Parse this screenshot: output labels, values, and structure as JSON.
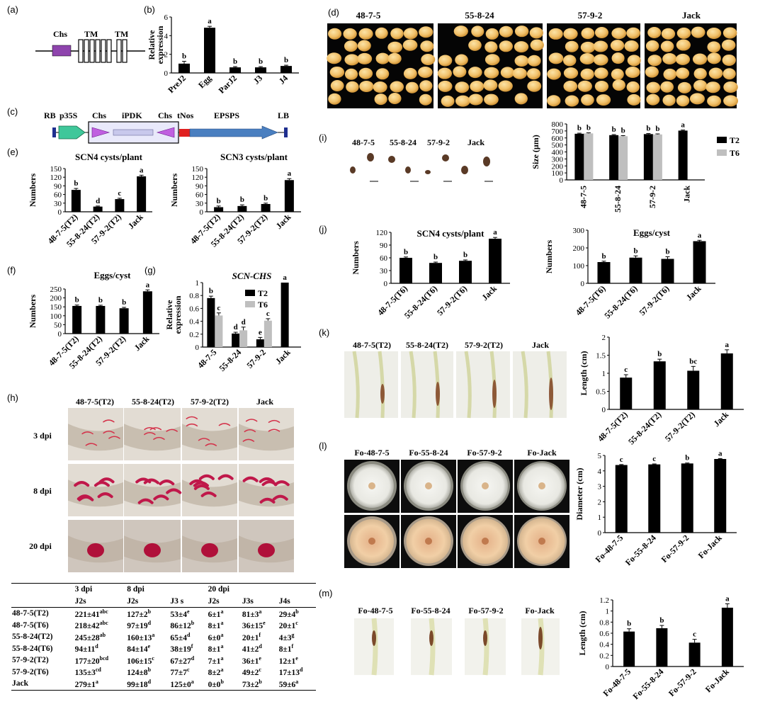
{
  "panels": {
    "a": "(a)",
    "b": "(b)",
    "c": "(c)",
    "d": "(d)",
    "e": "(e)",
    "f": "(f)",
    "g": "(g)",
    "h": "(h)",
    "i": "(i)",
    "j": "(j)",
    "k": "(k)",
    "l": "(l)",
    "m": "(m)"
  },
  "gene_model": {
    "labels": [
      "Chs",
      "TM",
      "TM"
    ],
    "colors": {
      "chs": "#8e44ad"
    }
  },
  "construct": {
    "labels": [
      "RB",
      "p35S",
      "Chs",
      "iPDK",
      "Chs",
      "tNos",
      "EPSPS",
      "LB"
    ],
    "colors": {
      "promoter": "#3fc79a",
      "chs": "#c060e0",
      "intron": "#c8c8ec",
      "tnos": "#e02020",
      "epsps": "#4a7fc0",
      "border": "#1f2f8f"
    }
  },
  "photo_labels": {
    "d": [
      "48-7-5",
      "55-8-24",
      "57-9-2",
      "Jack"
    ],
    "i": [
      "48-7-5",
      "55-8-24",
      "57-9-2",
      "Jack"
    ],
    "h_cols": [
      "48-7-5(T2)",
      "55-8-24(T2)",
      "57-9-2(T2)",
      "Jack"
    ],
    "h_rows": [
      "3 dpi",
      "8 dpi",
      "20 dpi"
    ],
    "k": [
      "48-7-5(T2)",
      "55-8-24(T2)",
      "57-9-2(T2)",
      "Jack"
    ],
    "l": [
      "Fo-48-7-5",
      "Fo-55-8-24",
      "Fo-57-9-2",
      "Fo-Jack"
    ],
    "m": [
      "Fo-48-7-5",
      "Fo-55-8-24",
      "Fo-57-9-2",
      "Fo-Jack"
    ]
  },
  "table_h": {
    "header1": [
      "",
      "3 dpi",
      "8 dpi",
      "",
      "20 dpi",
      "",
      ""
    ],
    "header2": [
      "",
      "J2s",
      "J2s",
      "J3 s",
      "J2s",
      "J3s",
      "J4s"
    ],
    "rows": [
      {
        "line": "48-7-5(T2)",
        "cells": [
          [
            "221±41",
            "abc"
          ],
          [
            "127±2",
            "b"
          ],
          [
            "53±4",
            "e"
          ],
          [
            "6±1",
            "a"
          ],
          [
            "81±3",
            "a"
          ],
          [
            "29±4",
            "b"
          ]
        ]
      },
      {
        "line": "48-7-5(T6)",
        "cells": [
          [
            "218±42",
            "abc"
          ],
          [
            "97±19",
            "d"
          ],
          [
            "86±12",
            "b"
          ],
          [
            "8±1",
            "a"
          ],
          [
            "36±15",
            "e"
          ],
          [
            "20±1",
            "c"
          ]
        ]
      },
      {
        "line": "55-8-24(T2)",
        "cells": [
          [
            "245±28",
            "ab"
          ],
          [
            "160±13",
            "a"
          ],
          [
            "65±4",
            "d"
          ],
          [
            "6±0",
            "a"
          ],
          [
            "20±1",
            "f"
          ],
          [
            "4±3",
            "g"
          ]
        ]
      },
      {
        "line": "55-8-24(T6)",
        "cells": [
          [
            "94±11",
            "d"
          ],
          [
            "84±14",
            "e"
          ],
          [
            "38±19",
            "f"
          ],
          [
            "8±1",
            "a"
          ],
          [
            "41±2",
            "d"
          ],
          [
            "8±1",
            "f"
          ]
        ]
      },
      {
        "line": "57-9-2(T2)",
        "cells": [
          [
            "177±20",
            "bcd"
          ],
          [
            "106±15",
            "c"
          ],
          [
            "67±27",
            "d"
          ],
          [
            "7±1",
            "a"
          ],
          [
            "36±1",
            "e"
          ],
          [
            "12±1",
            "e"
          ]
        ]
      },
      {
        "line": "57-9-2(T6)",
        "cells": [
          [
            "135±3",
            "cd"
          ],
          [
            "124±8",
            "b"
          ],
          [
            "77±7",
            "c"
          ],
          [
            "8±2",
            "a"
          ],
          [
            "49±2",
            "c"
          ],
          [
            "17±13",
            "d"
          ]
        ]
      },
      {
        "line": "Jack",
        "cells": [
          [
            "279±1",
            "a"
          ],
          [
            "99±18",
            "d"
          ],
          [
            "125±0",
            "a"
          ],
          [
            "0±0",
            "b"
          ],
          [
            "73±2",
            "b"
          ],
          [
            "59±6",
            "a"
          ]
        ]
      }
    ]
  },
  "chart_data": [
    {
      "id": "b",
      "type": "bar",
      "categories": [
        "PreJ2",
        "Egg",
        "ParJ2",
        "J3",
        "J4"
      ],
      "values": [
        1.0,
        4.85,
        0.6,
        0.6,
        0.75
      ],
      "errors": [
        0.25,
        0.15,
        0.08,
        0.08,
        0.08
      ],
      "letters": [
        "b",
        "a",
        "b",
        "b",
        "b"
      ],
      "ylim": [
        0,
        6
      ],
      "yticks": [
        0,
        2,
        4,
        6
      ],
      "ylabel": "Relative expression",
      "title": "",
      "series_colors": [
        "#000000"
      ]
    },
    {
      "id": "e1",
      "type": "bar",
      "categories": [
        "48-7-5(T2)",
        "55-8-24(T2)",
        "57-9-2(T2)",
        "Jack"
      ],
      "values": [
        76,
        18,
        44,
        123
      ],
      "errors": [
        5,
        2,
        3,
        4
      ],
      "letters": [
        "b",
        "d",
        "c",
        "a"
      ],
      "ylim": [
        0,
        150
      ],
      "yticks": [
        0,
        30,
        60,
        90,
        120,
        150
      ],
      "ylabel": "Numbers",
      "title": "SCN4 cysts/plant",
      "series_colors": [
        "#000000"
      ]
    },
    {
      "id": "e2",
      "type": "bar",
      "categories": [
        "48-7-5(T2)",
        "55-8-24(T2)",
        "57-9-2(T2)",
        "Jack"
      ],
      "values": [
        16,
        20,
        27,
        110
      ],
      "errors": [
        4,
        4,
        3,
        5
      ],
      "letters": [
        "b",
        "b",
        "b",
        "a"
      ],
      "ylim": [
        0,
        150
      ],
      "yticks": [
        0,
        30,
        60,
        90,
        120,
        150
      ],
      "ylabel": "Numbers",
      "title": "SCN3 cysts/plant",
      "series_colors": [
        "#000000"
      ]
    },
    {
      "id": "f",
      "type": "bar",
      "categories": [
        "48-7-5(T2)",
        "55-8-24(T2)",
        "57-9-2(T2)",
        "Jack"
      ],
      "values": [
        155,
        155,
        142,
        237
      ],
      "errors": [
        5,
        4,
        5,
        8
      ],
      "letters": [
        "b",
        "b",
        "b",
        "a"
      ],
      "ylim": [
        0,
        250
      ],
      "yticks": [
        0,
        50,
        100,
        150,
        200,
        250
      ],
      "ylabel": "Numbers",
      "title": "Eggs/cyst",
      "series_colors": [
        "#000000"
      ]
    },
    {
      "id": "g",
      "type": "bar",
      "categories": [
        "48-7-5",
        "55-8-24",
        "57-9-2",
        "Jack"
      ],
      "series": [
        {
          "name": "T2",
          "values": [
            0.76,
            0.21,
            0.12,
            1.0
          ],
          "errors": [
            0.03,
            0.02,
            0.03,
            0
          ],
          "letters": [
            "b",
            "d",
            "e",
            "a"
          ]
        },
        {
          "name": "T6",
          "values": [
            0.49,
            0.26,
            0.41,
            null
          ],
          "errors": [
            0.04,
            0.05,
            0.03,
            0
          ],
          "letters": [
            "c",
            "d",
            "c",
            ""
          ]
        }
      ],
      "ylim": [
        0,
        1
      ],
      "yticks": [
        0,
        0.2,
        0.4,
        0.6,
        0.8,
        1
      ],
      "ylabel": "Relative expression",
      "title": "SCN-CHS",
      "legend": "top-right",
      "series_colors": [
        "#000000",
        "#bfbfbf"
      ]
    },
    {
      "id": "i",
      "type": "bar",
      "categories": [
        "48-7-5",
        "55-8-24",
        "57-9-2",
        "Jack"
      ],
      "series": [
        {
          "name": "T2",
          "values": [
            660,
            640,
            655,
            705
          ],
          "errors": [
            8,
            8,
            8,
            8
          ],
          "letters": [
            "b",
            "b",
            "b",
            "a"
          ]
        },
        {
          "name": "T6",
          "values": [
            665,
            625,
            650,
            null
          ],
          "errors": [
            8,
            8,
            8,
            0
          ],
          "letters": [
            "b",
            "b",
            "b",
            ""
          ]
        }
      ],
      "ylim": [
        0,
        800
      ],
      "yticks": [
        0,
        100,
        200,
        300,
        400,
        500,
        600,
        700,
        800
      ],
      "ylabel": "Size (μm)",
      "title": "",
      "legend": "right",
      "series_colors": [
        "#000000",
        "#bfbfbf"
      ]
    },
    {
      "id": "j1",
      "type": "bar",
      "categories": [
        "48-7-5(T6)",
        "55-8-24(T6)",
        "57-9-2(T6)",
        "Jack"
      ],
      "values": [
        60,
        48,
        53,
        105
      ],
      "errors": [
        2,
        2,
        2,
        3
      ],
      "letters": [
        "b",
        "b",
        "b",
        "a"
      ],
      "ylim": [
        0,
        120
      ],
      "yticks": [
        0,
        30,
        60,
        90,
        120
      ],
      "ylabel": "Numbers",
      "title": "SCN4 cysts/plant",
      "series_colors": [
        "#000000"
      ]
    },
    {
      "id": "j2",
      "type": "bar",
      "categories": [
        "48-7-5(T6)",
        "55-8-24(T6)",
        "57-9-2(T6)",
        "Jack"
      ],
      "values": [
        120,
        145,
        138,
        238
      ],
      "errors": [
        5,
        10,
        12,
        5
      ],
      "letters": [
        "b",
        "b",
        "b",
        "a"
      ],
      "ylim": [
        0,
        300
      ],
      "yticks": [
        0,
        100,
        200,
        300
      ],
      "ylabel": "Numbers",
      "title": "Eggs/cyst",
      "series_colors": [
        "#000000"
      ]
    },
    {
      "id": "k",
      "type": "bar",
      "categories": [
        "48-7-5(T2)",
        "55-8-24(T2)",
        "57-9-2(T2)",
        "Jack"
      ],
      "values": [
        0.88,
        1.33,
        1.07,
        1.55
      ],
      "errors": [
        0.08,
        0.06,
        0.12,
        0.1
      ],
      "letters": [
        "c",
        "b",
        "bc",
        "a"
      ],
      "ylim": [
        0,
        2
      ],
      "yticks": [
        0,
        0.5,
        1,
        1.5,
        2
      ],
      "ylabel": "Length (cm)",
      "title": "",
      "series_colors": [
        "#000000"
      ]
    },
    {
      "id": "l",
      "type": "bar",
      "categories": [
        "Fo-48-7-5",
        "Fo-55-8-24",
        "Fo-57-9-2",
        "Fo-Jack"
      ],
      "values": [
        4.38,
        4.42,
        4.48,
        4.77
      ],
      "errors": [
        0.03,
        0.03,
        0.03,
        0.03
      ],
      "letters": [
        "c",
        "c",
        "b",
        "a"
      ],
      "ylim": [
        0,
        5
      ],
      "yticks": [
        0,
        1,
        2,
        3,
        4,
        5
      ],
      "ylabel": "Diameter (cm)",
      "title": "",
      "series_colors": [
        "#000000"
      ]
    },
    {
      "id": "m",
      "type": "bar",
      "categories": [
        "Fo-48-7-5",
        "Fo-55-8-24",
        "Fo-57-9-2",
        "Fo-Jack"
      ],
      "values": [
        0.63,
        0.69,
        0.43,
        1.06
      ],
      "errors": [
        0.05,
        0.05,
        0.06,
        0.07
      ],
      "letters": [
        "b",
        "b",
        "c",
        "a"
      ],
      "ylim": [
        0,
        1.2
      ],
      "yticks": [
        0,
        0.2,
        0.4,
        0.6,
        0.8,
        1,
        1.2
      ],
      "ylabel": "Length (cm)",
      "title": "",
      "series_colors": [
        "#000000"
      ]
    }
  ]
}
